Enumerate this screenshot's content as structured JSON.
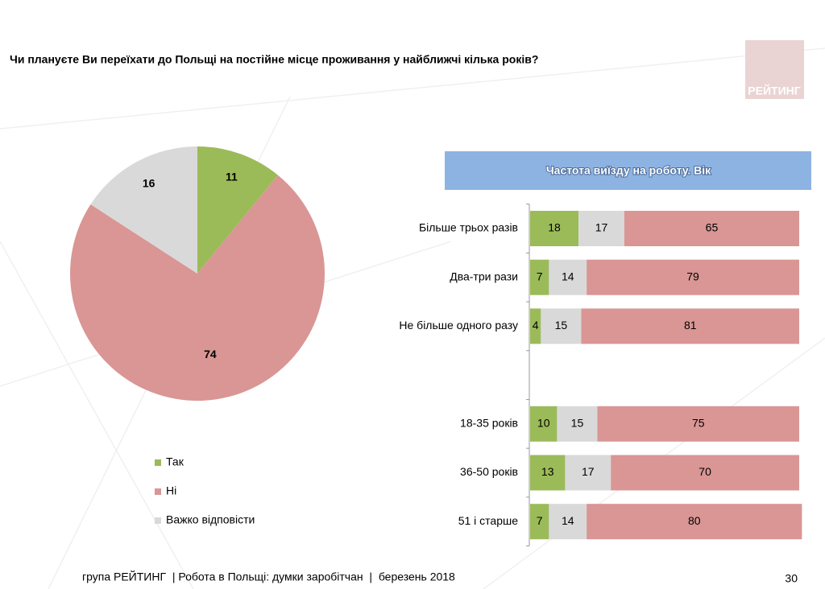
{
  "title": "Чи плануєте Ви переїхати до Польщі на постійне місце проживання у найближчі кілька років?",
  "logo": "РЕЙТИНГ",
  "footer": "група РЕЙТИНГ  | Робота в Польщі: думки заробітчан  |  березень 2018",
  "page_number": "30",
  "chart_data": [
    {
      "type": "pie",
      "categories": [
        "Так",
        "Ні",
        "Важко відповісти"
      ],
      "values": [
        11,
        74,
        16
      ],
      "colors": [
        "#9bbb59",
        "#d99694",
        "#d9d9d9"
      ],
      "legend": "bottom-left"
    },
    {
      "type": "bar",
      "orientation": "horizontal",
      "stacked": true,
      "title": "Частота виїзду на роботу. Вік",
      "categories": [
        "Більше трьох разів",
        "Два-три рази",
        "Не більше одного разу",
        null,
        "18-35 років",
        "36-50 років",
        "51 і старше"
      ],
      "xlim": [
        0,
        100
      ],
      "series": [
        {
          "name": "Так",
          "color": "#9bbb59",
          "values": [
            18,
            7,
            4,
            null,
            10,
            13,
            7
          ]
        },
        {
          "name": "Важко відповісти",
          "color": "#d9d9d9",
          "values": [
            17,
            14,
            15,
            null,
            15,
            17,
            14
          ]
        },
        {
          "name": "Ні",
          "color": "#d99694",
          "values": [
            65,
            79,
            81,
            null,
            75,
            70,
            80
          ]
        }
      ]
    }
  ]
}
